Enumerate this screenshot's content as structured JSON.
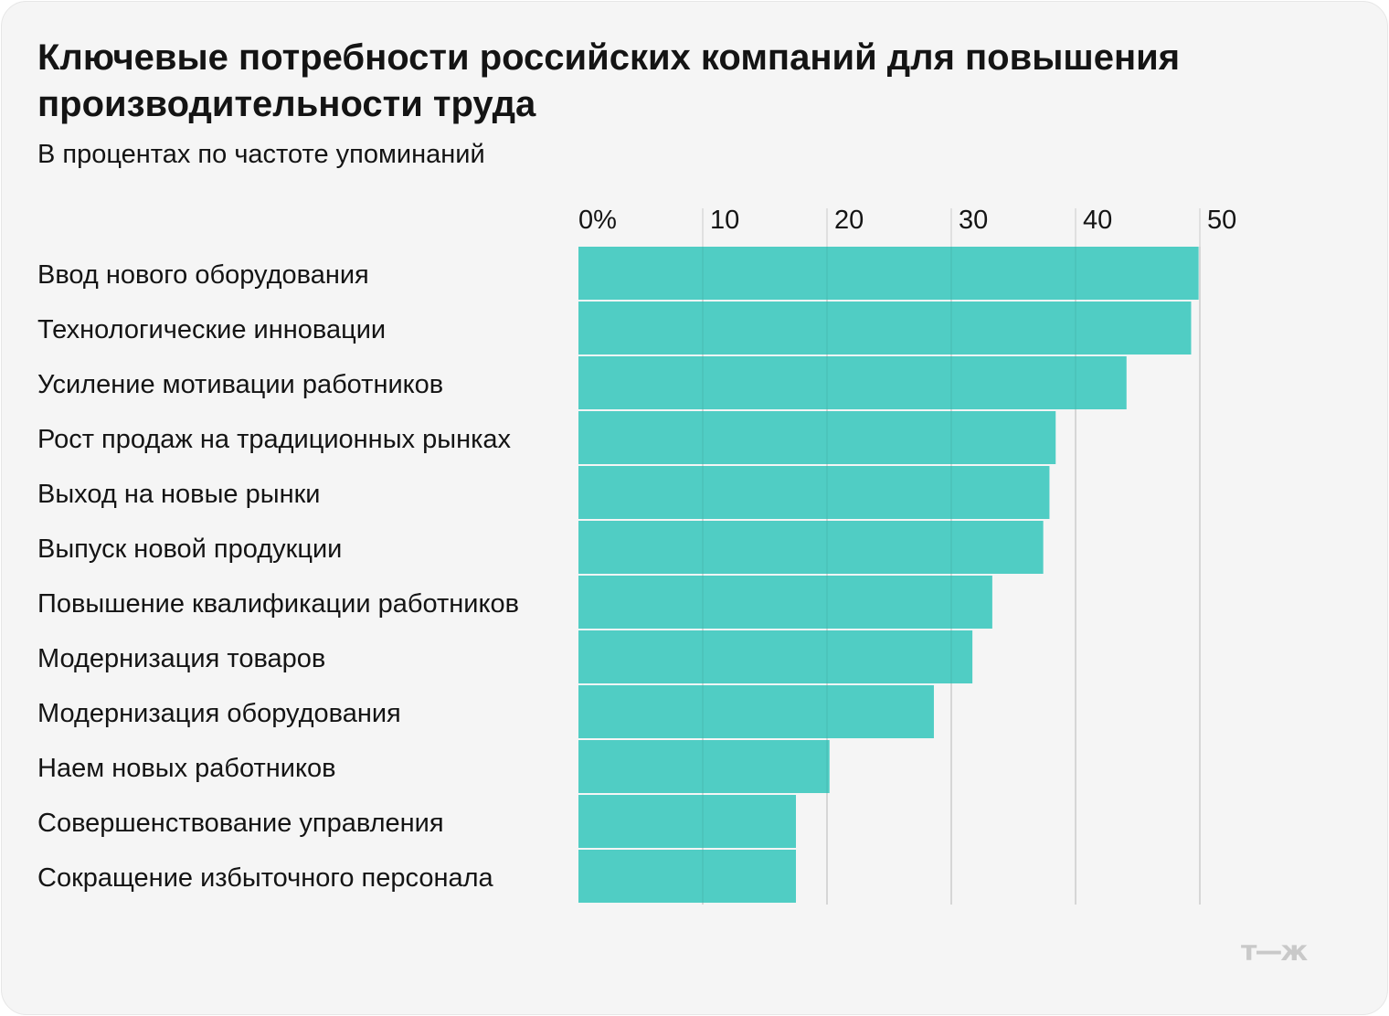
{
  "title": "Ключевые потребности российских компаний для повышения производительности труда",
  "subtitle": "В процентах по частоте упоминаний",
  "logo_text": "т—ж",
  "colors": {
    "bar": "#50CDC4",
    "grid": "#d9d9d9",
    "text": "#141414",
    "background": "#f5f5f5"
  },
  "chart_data": {
    "type": "bar",
    "orientation": "horizontal",
    "title": "Ключевые потребности российских компаний для повышения производительности труда",
    "subtitle": "В процентах по частоте упоминаний",
    "xlim": [
      0,
      50
    ],
    "ticks": [
      0,
      10,
      20,
      30,
      40,
      50
    ],
    "tick_labels": [
      "0%",
      "10",
      "20",
      "30",
      "40",
      "50"
    ],
    "grid": true,
    "categories": [
      "Ввод нового оборудования",
      "Технологические инновации",
      "Усиление мотивации работников",
      "Рост продаж на традиционных рынках",
      "Выход на новые рынки",
      "Выпуск новой продукции",
      "Повышение квалификации работников",
      "Модернизация товаров",
      "Модернизация оборудования",
      "Наем новых работников",
      "Совершенствование управления",
      "Сокращение избыточного персонала"
    ],
    "values": [
      49.9,
      49.3,
      44.1,
      38.4,
      37.9,
      37.4,
      33.3,
      31.7,
      28.6,
      20.2,
      17.5,
      17.5
    ]
  }
}
